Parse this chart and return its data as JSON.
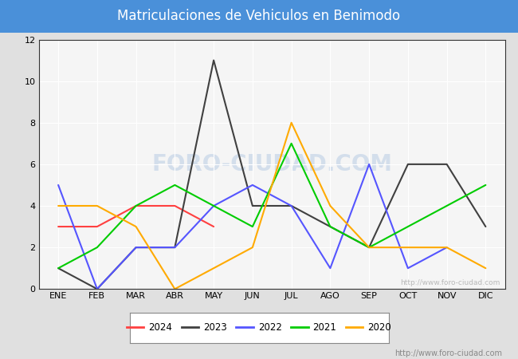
{
  "title": "Matriculaciones de Vehiculos en Benimodo",
  "title_bg_color": "#4a90d9",
  "title_text_color": "white",
  "months": [
    "ENE",
    "FEB",
    "MAR",
    "ABR",
    "MAY",
    "JUN",
    "JUL",
    "AGO",
    "SEP",
    "OCT",
    "NOV",
    "DIC"
  ],
  "ylim": [
    0,
    12
  ],
  "yticks": [
    0,
    2,
    4,
    6,
    8,
    10,
    12
  ],
  "series": {
    "2024": {
      "color": "#ff4040",
      "data": [
        3,
        3,
        4,
        4,
        3,
        null,
        null,
        null,
        null,
        null,
        null,
        null
      ]
    },
    "2023": {
      "color": "#404040",
      "data": [
        1,
        0,
        2,
        2,
        11,
        4,
        4,
        3,
        2,
        6,
        6,
        3
      ]
    },
    "2022": {
      "color": "#5555ff",
      "data": [
        5,
        0,
        2,
        2,
        4,
        5,
        4,
        1,
        6,
        1,
        2,
        null
      ]
    },
    "2021": {
      "color": "#00cc00",
      "data": [
        1,
        2,
        4,
        5,
        4,
        3,
        7,
        3,
        2,
        3,
        4,
        5
      ]
    },
    "2020": {
      "color": "#ffaa00",
      "data": [
        4,
        4,
        3,
        0,
        1,
        2,
        8,
        4,
        2,
        2,
        2,
        1
      ]
    }
  },
  "years_order": [
    "2024",
    "2023",
    "2022",
    "2021",
    "2020"
  ],
  "watermark_chart": "http://www.foro-ciudad.com",
  "watermark_bottom": "http://www.foro-ciudad.com",
  "fig_bg_color": "#e0e0e0",
  "plot_bg_color": "#f5f5f5",
  "grid_color": "#ffffff",
  "foro_watermark": "FORO-CIUDAD.COM"
}
